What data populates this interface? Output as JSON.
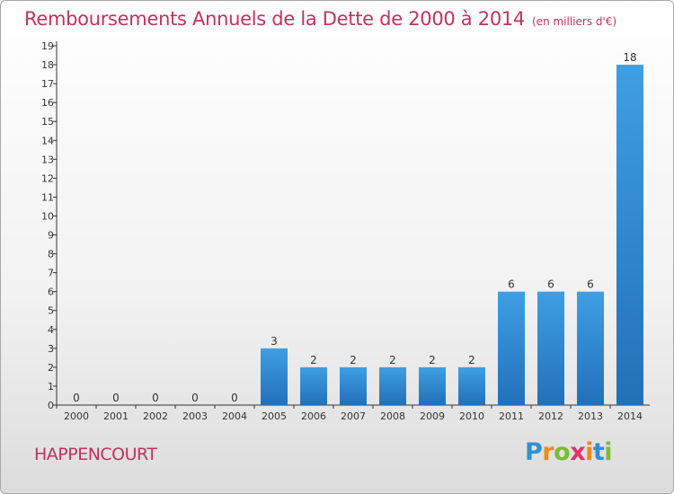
{
  "page": {
    "title": "Remboursements Annuels de la Dette de 2000 à 2014",
    "subtitle": "(en milliers d'€)",
    "town": "HAPPENCOURT",
    "logo": {
      "letters": [
        "P",
        "r",
        "o",
        "x",
        "i",
        "t",
        "i"
      ],
      "colors": [
        "#2f8fd6",
        "#f08a1c",
        "#7cbc2e",
        "#e4306a",
        "#f08a1c",
        "#2f8fd6",
        "#7cbc2e"
      ]
    }
  },
  "chart_data": {
    "type": "bar",
    "categories": [
      "2000",
      "2001",
      "2002",
      "2003",
      "2004",
      "2005",
      "2006",
      "2007",
      "2008",
      "2009",
      "2010",
      "2011",
      "2012",
      "2013",
      "2014"
    ],
    "values": [
      0,
      0,
      0,
      0,
      0,
      3,
      2,
      2,
      2,
      2,
      2,
      6,
      6,
      6,
      18
    ],
    "data_labels": [
      "0",
      "0",
      "0",
      "0",
      "0",
      "3",
      "2",
      "2",
      "2",
      "2",
      "2",
      "6",
      "6",
      "6",
      "18"
    ],
    "yticks": [
      0,
      1,
      2,
      3,
      4,
      5,
      6,
      7,
      8,
      9,
      10,
      11,
      12,
      13,
      14,
      15,
      16,
      17,
      18,
      19
    ],
    "ylim": [
      0,
      19
    ],
    "grid": false,
    "legend": "none",
    "bar_color": "#3f9fe3",
    "bar_color_dark": "#2270b8"
  }
}
